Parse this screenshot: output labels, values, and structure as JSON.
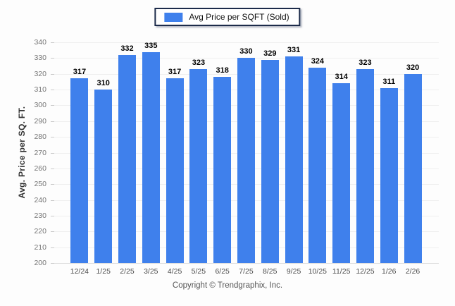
{
  "legend": {
    "label": "Avg Price per SQFT (Sold)"
  },
  "footer": {
    "text": "Copyright © Trendgraphix, Inc."
  },
  "colors": {
    "bar": "#3f80ec",
    "legend_border": "#1c2b4a",
    "gridline": "#efefef",
    "baseline": "#dcdcdc",
    "tickmark": "#c9c9c9",
    "y_tick_text": "#757575",
    "x_tick_text": "#4d4d4d"
  },
  "chart_data": {
    "type": "bar",
    "title": "",
    "xlabel": "",
    "ylabel": "Avg. Price per SQ. FT.",
    "categories": [
      "12/24",
      "1/25",
      "2/25",
      "3/25",
      "4/25",
      "5/25",
      "6/25",
      "7/25",
      "8/25",
      "9/25",
      "10/25",
      "11/25",
      "12/25",
      "1/26",
      "2/26"
    ],
    "values": [
      317,
      310,
      332,
      335,
      317,
      323,
      318,
      330,
      329,
      331,
      324,
      314,
      323,
      311,
      320
    ],
    "series": [
      {
        "name": "Avg Price per SQFT (Sold)",
        "values": [
          317,
          310,
          332,
          335,
          317,
          323,
          318,
          330,
          329,
          331,
          324,
          314,
          323,
          311,
          320
        ]
      }
    ],
    "ylim": [
      200,
      340
    ],
    "ytick_step": 10,
    "grid": true,
    "legend_position": "top-center",
    "value_labels": "above-bars"
  }
}
